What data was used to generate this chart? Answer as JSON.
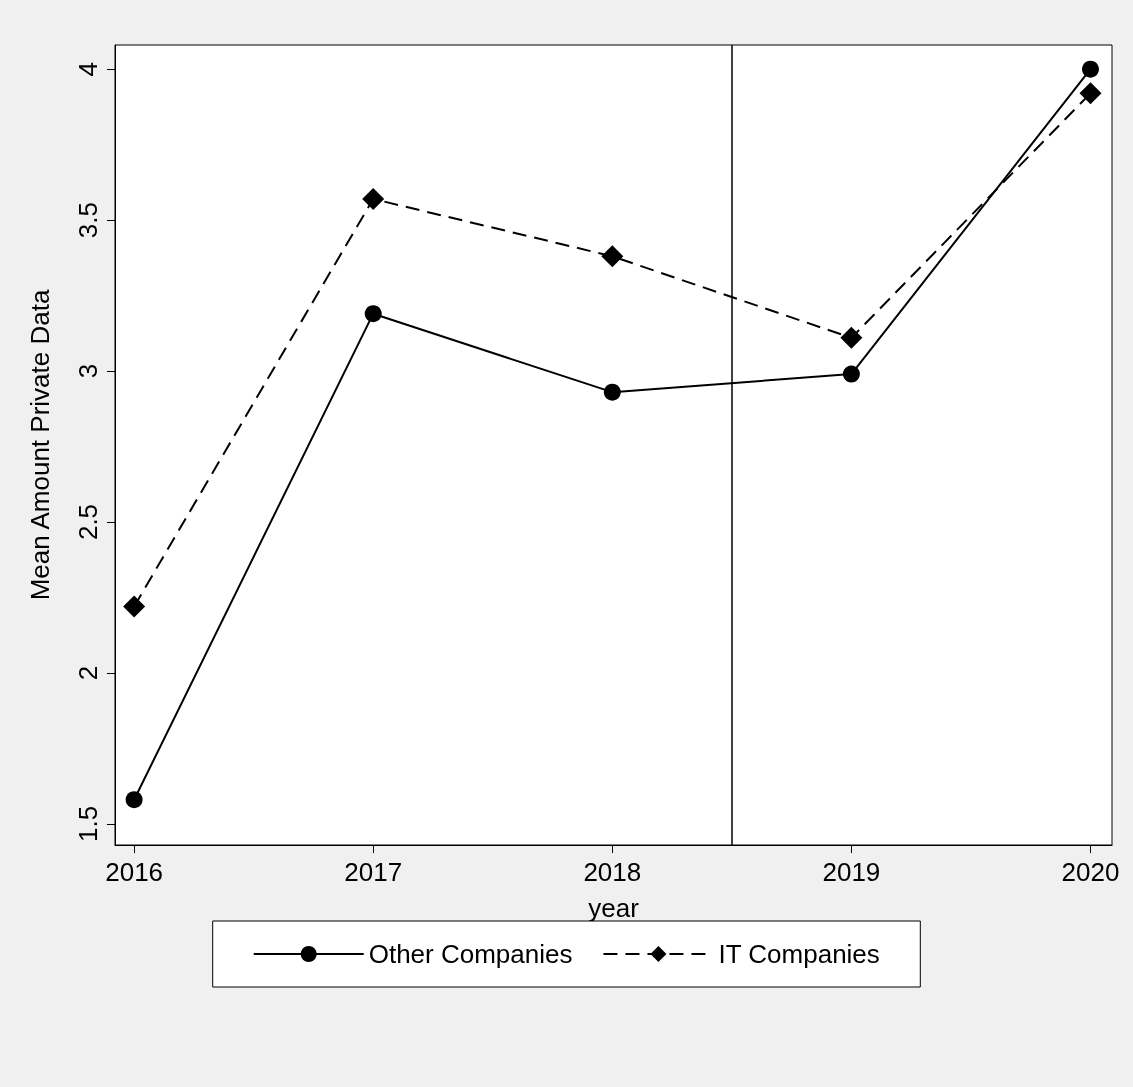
{
  "chart_data": {
    "type": "line",
    "xlabel": "year",
    "ylabel": "Mean Amount Private Data",
    "x": [
      2016,
      2017,
      2018,
      2019,
      2020
    ],
    "series": [
      {
        "name": "Other Companies",
        "color": "#000000",
        "marker": "circle",
        "line_style": "solid",
        "values": [
          1.58,
          3.19,
          2.93,
          2.99,
          4.0
        ]
      },
      {
        "name": "IT Companies",
        "color": "#000000",
        "marker": "diamond",
        "line_style": "dashed",
        "values": [
          2.22,
          3.57,
          3.38,
          3.11,
          3.92
        ]
      }
    ],
    "xlim": [
      2015.92,
      2020.09
    ],
    "xticks": [
      2016,
      2017,
      2018,
      2019,
      2020
    ],
    "ylim": [
      1.43,
      4.08
    ],
    "yticks": [
      1.5,
      2,
      2.5,
      3,
      3.5,
      4
    ],
    "ref_lines": [
      {
        "axis": "x",
        "value": 2018.5,
        "color": "#000000",
        "line_style": "solid"
      }
    ],
    "grid": false,
    "legend": "bottom"
  }
}
